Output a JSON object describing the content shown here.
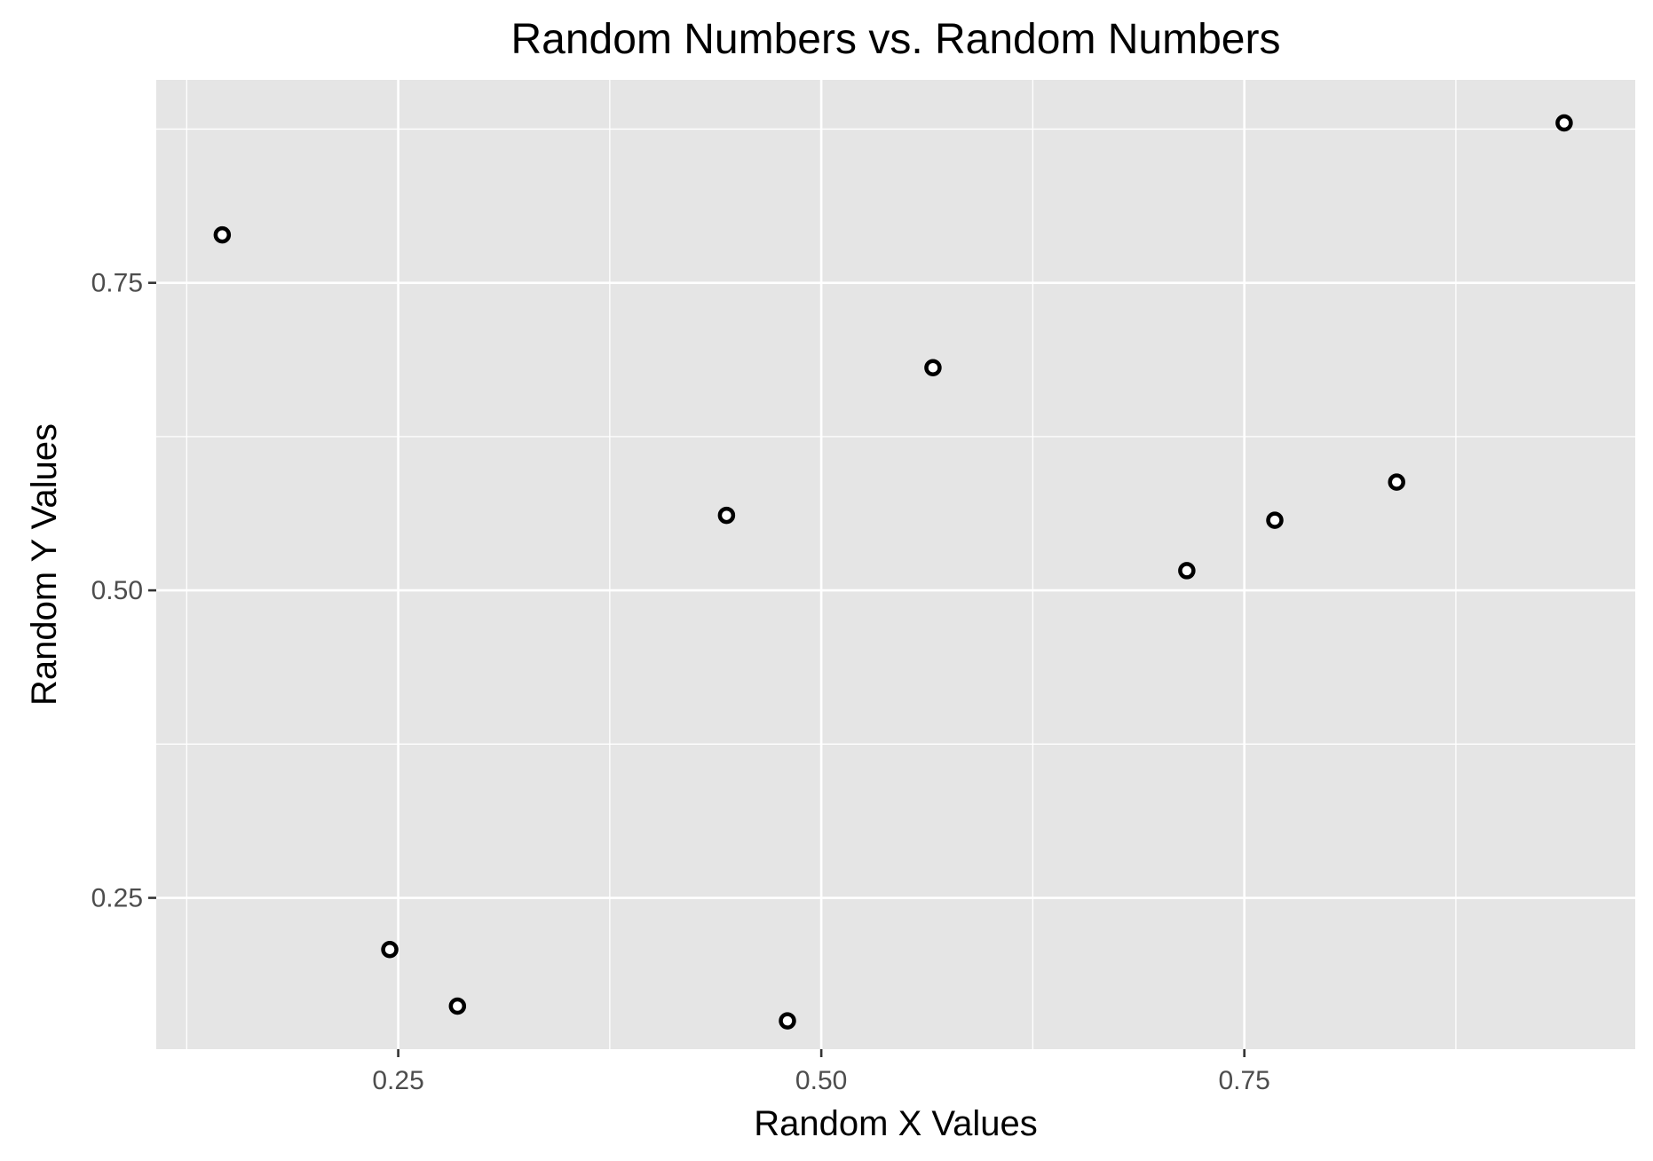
{
  "chart_data": {
    "type": "scatter",
    "title": "Random Numbers vs. Random Numbers",
    "xlabel": "Random X Values",
    "ylabel": "Random Y Values",
    "xlim": [
      0.107,
      0.981
    ],
    "ylim": [
      0.127,
      0.915
    ],
    "x_ticks": [
      {
        "value": 0.25,
        "label": "0.25"
      },
      {
        "value": 0.5,
        "label": "0.50"
      },
      {
        "value": 0.75,
        "label": "0.75"
      }
    ],
    "y_ticks": [
      {
        "value": 0.25,
        "label": "0.25"
      },
      {
        "value": 0.5,
        "label": "0.50"
      },
      {
        "value": 0.75,
        "label": "0.75"
      }
    ],
    "x_minor": [
      0.125,
      0.375,
      0.625,
      0.875
    ],
    "y_minor": [
      0.125,
      0.375,
      0.625,
      0.875
    ],
    "grid": true,
    "colors": {
      "panel_background": "#e5e5e5",
      "grid_line": "#ffffff",
      "point_stroke": "#000000",
      "point_fill": "#ffffff",
      "tick_mark": "#333333"
    },
    "points": [
      {
        "x": 0.146,
        "y": 0.789
      },
      {
        "x": 0.245,
        "y": 0.208
      },
      {
        "x": 0.285,
        "y": 0.162
      },
      {
        "x": 0.444,
        "y": 0.561
      },
      {
        "x": 0.48,
        "y": 0.15
      },
      {
        "x": 0.566,
        "y": 0.681
      },
      {
        "x": 0.716,
        "y": 0.516
      },
      {
        "x": 0.768,
        "y": 0.557
      },
      {
        "x": 0.84,
        "y": 0.588
      },
      {
        "x": 0.939,
        "y": 0.88
      }
    ]
  }
}
